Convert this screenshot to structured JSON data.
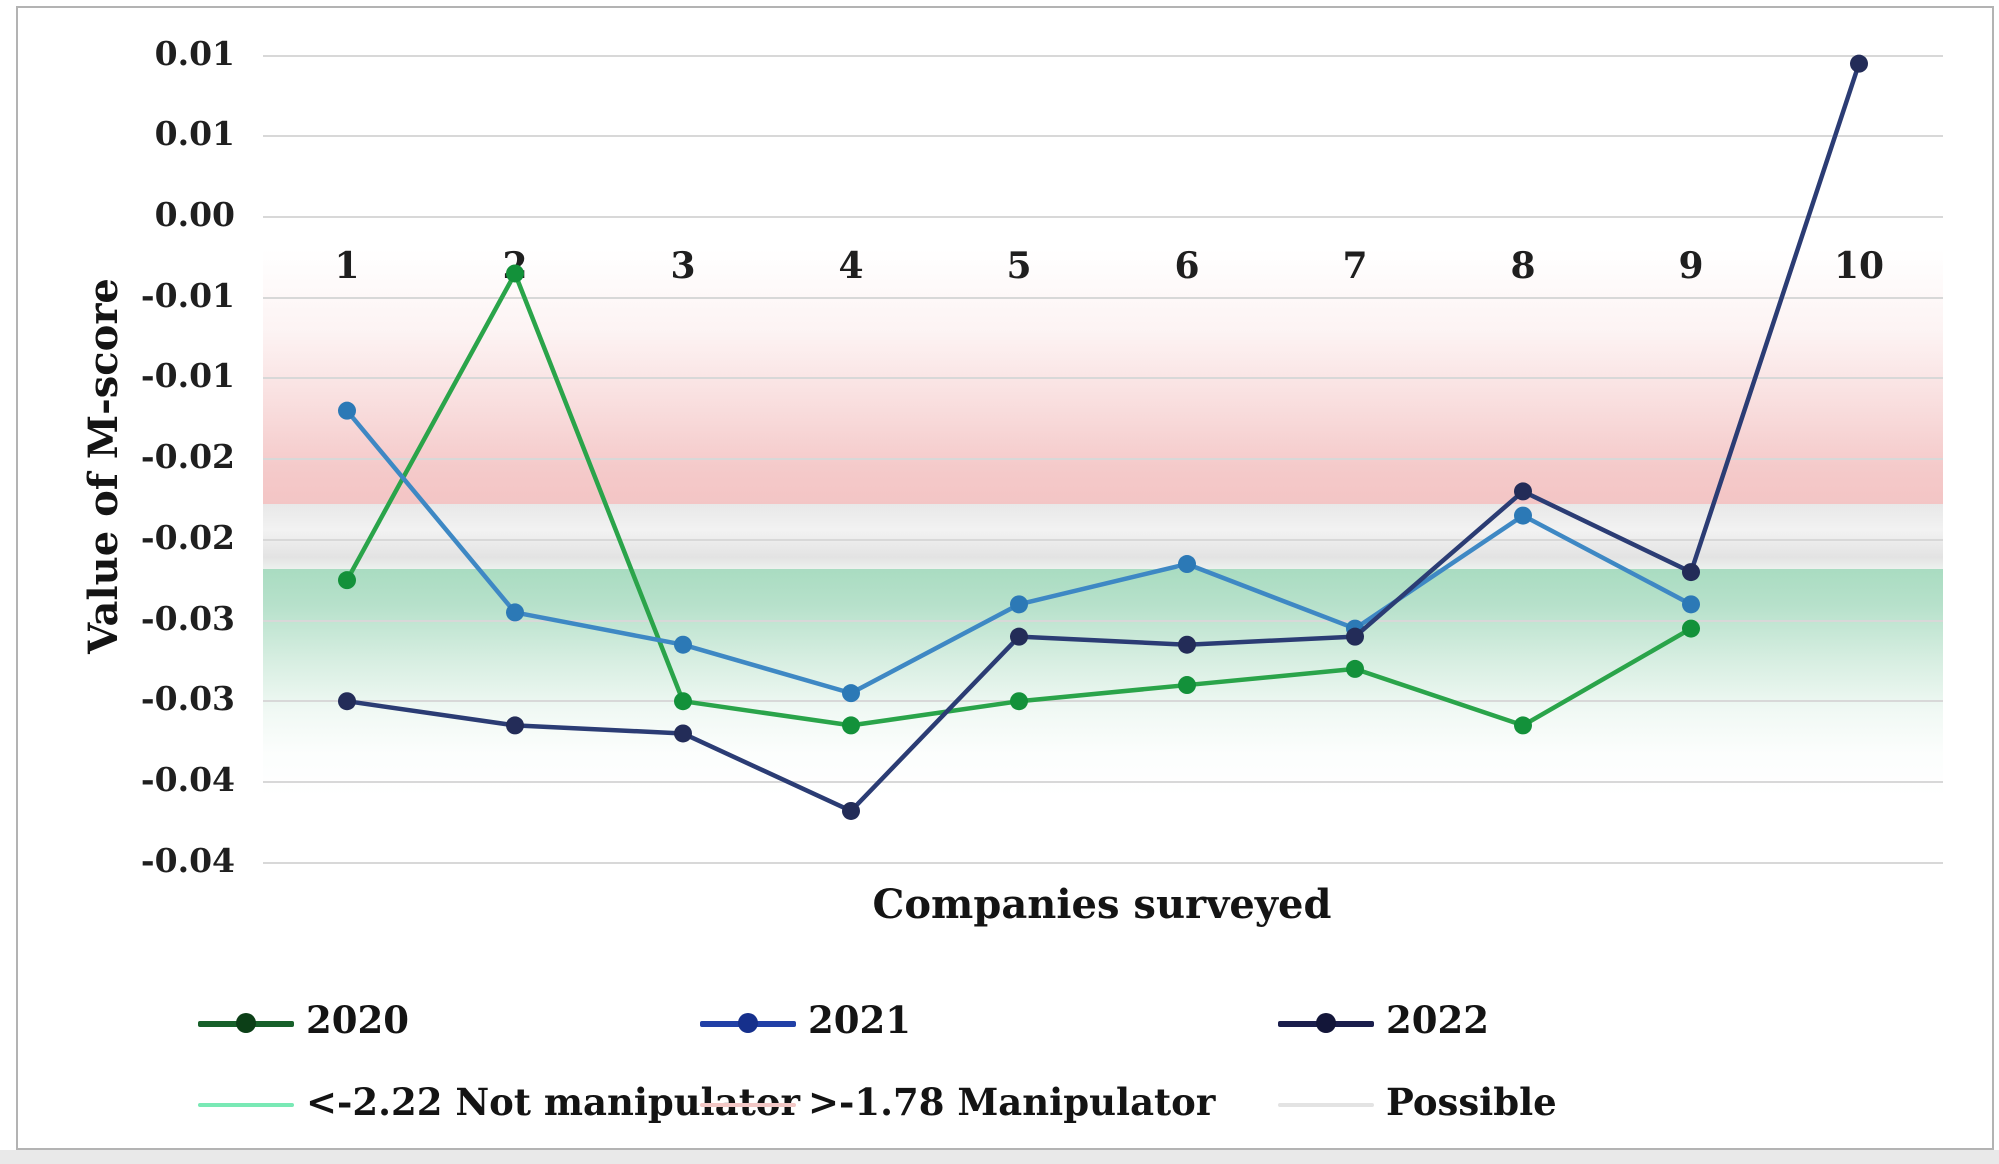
{
  "figure": {
    "y_axis_title": "Value of M-score",
    "x_axis_title": "Companies surveyed"
  },
  "chart_data": {
    "type": "line",
    "title": "",
    "xlabel": "Companies surveyed",
    "ylabel": "Value of M-score",
    "categories": [
      "1",
      "2",
      "3",
      "4",
      "5",
      "6",
      "7",
      "8",
      "9",
      "10"
    ],
    "y_axis": {
      "max": 0.01,
      "min": -0.04,
      "major_unit": 0.005,
      "label_format": "two_decimals"
    },
    "y_tick_labels": [
      "0.01",
      "0.01",
      "0.00",
      "-0.01",
      "-0.01",
      "-0.02",
      "-0.02",
      "-0.03",
      "-0.03",
      "-0.04",
      "-0.04"
    ],
    "grid": true,
    "legend_position": "bottom",
    "series": [
      {
        "name": "2020",
        "color": "#2aa44a",
        "marker_color": "#13913a",
        "legend_color": "#17602a",
        "legend_marker_color": "#0c3f17",
        "values": [
          -0.0225,
          -0.0035,
          -0.03,
          -0.0315,
          -0.03,
          -0.029,
          -0.028,
          -0.0315,
          -0.0255,
          null
        ]
      },
      {
        "name": "2021",
        "color": "#3e88c4",
        "marker_color": "#2c79b6",
        "legend_color": "#2140a6",
        "legend_marker_color": "#16308c",
        "values": [
          -0.012,
          -0.0245,
          -0.0265,
          -0.0295,
          -0.024,
          -0.0215,
          -0.0255,
          -0.0185,
          -0.024,
          null
        ]
      },
      {
        "name": "2022",
        "color": "#2b3c74",
        "marker_color": "#232c58",
        "legend_color": "#1a1e4c",
        "legend_marker_color": "#131639",
        "values": [
          -0.03,
          -0.0315,
          -0.032,
          -0.0368,
          -0.026,
          -0.0265,
          -0.026,
          -0.017,
          -0.022,
          0.0095
        ]
      }
    ],
    "bands": [
      {
        "name": "<-2.22 Not manipulator",
        "kind": "green",
        "from": -0.0218,
        "to": -0.036,
        "legend_color": "#79e9b5"
      },
      {
        "name": ">-1.78 Manipulator",
        "kind": "red",
        "from": -0.002,
        "to": -0.0178,
        "legend_color": "#f2c7c5"
      },
      {
        "name": "Possible",
        "kind": "gray",
        "from": -0.0178,
        "to": -0.0218,
        "legend_color": "#e3e3e3"
      }
    ]
  }
}
